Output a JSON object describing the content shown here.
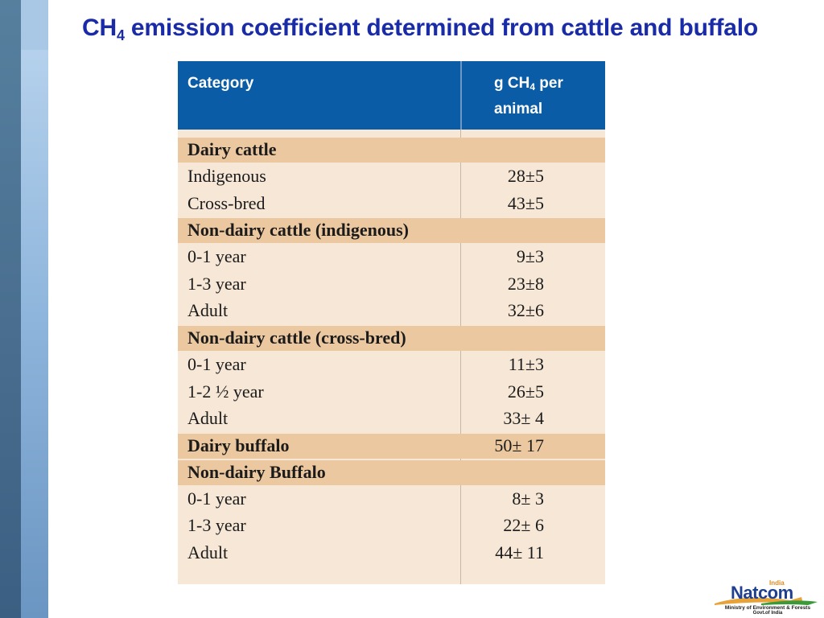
{
  "slide": {
    "title_prefix": "CH",
    "title_sub": "4",
    "title_suffix": " emission coefficient determined from cattle and buffalo"
  },
  "table": {
    "header_category": "Category",
    "header_value_prefix": "g CH",
    "header_value_sub": "4",
    "header_value_suffix": " per animal",
    "rows": [
      {
        "category": "Dairy cattle",
        "value": "",
        "group": true
      },
      {
        "category": "Indigenous",
        "value": "28±5",
        "group": false
      },
      {
        "category": "Cross-bred",
        "value": "43±5",
        "group": false
      },
      {
        "category": "Non-dairy cattle (indigenous)",
        "value": "",
        "group": true
      },
      {
        "category": "0-1 year",
        "value": "9±3",
        "group": false
      },
      {
        "category": "1-3 year",
        "value": "23±8",
        "group": false
      },
      {
        "category": "Adult",
        "value": "32±6",
        "group": false
      },
      {
        "category": "Non-dairy cattle (cross-bred)",
        "value": "",
        "group": true
      },
      {
        "category": "0-1 year",
        "value": "11±3",
        "group": false
      },
      {
        "category": "1-2 ½ year",
        "value": "26±5",
        "group": false
      },
      {
        "category": "Adult",
        "value": "33± 4",
        "group": false
      },
      {
        "category": "Dairy buffalo",
        "value": "50± 17",
        "group": true
      },
      {
        "category": "Non-dairy Buffalo",
        "value": "",
        "group": true
      },
      {
        "category": "0-1 year",
        "value": "8± 3",
        "group": false
      },
      {
        "category": "1-3 year",
        "value": "22± 6",
        "group": false
      },
      {
        "category": "Adult",
        "value": "44± 11",
        "group": false
      }
    ]
  },
  "logo": {
    "country": "India",
    "name": "Natcom",
    "ministry": "Ministry of Environment & Forests",
    "government": "Govt.of India"
  },
  "colors": {
    "title": "#1a2ba8",
    "header_bg": "#0a5ca6",
    "group_row_bg": "#ecc8a0",
    "row_bg": "#f6e7d6"
  }
}
